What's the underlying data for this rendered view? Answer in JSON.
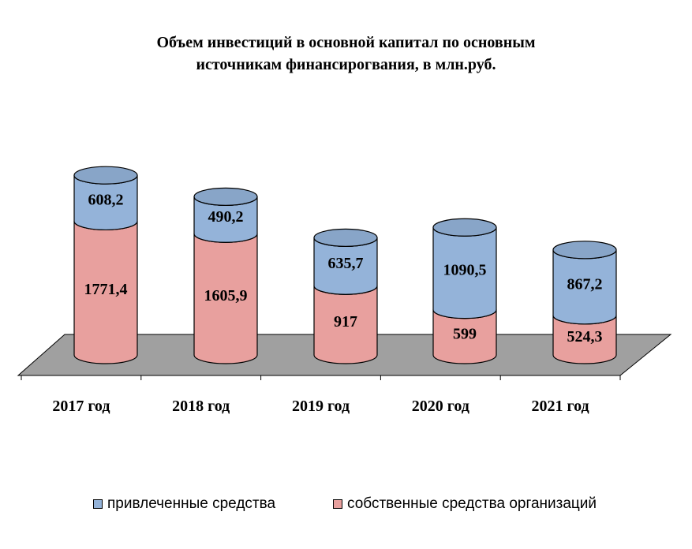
{
  "chart_data": {
    "type": "bar",
    "stacked": true,
    "style": "3d-cylinder",
    "title": [
      "Объем инвестиций в основной капитал по основным",
      "источникам финансирогвания, в млн.руб."
    ],
    "categories": [
      "2017 год",
      "2018 год",
      "2019 год",
      "2020 год",
      "2021 год"
    ],
    "series": [
      {
        "name": "собственные средства организаций",
        "values": [
          1771.4,
          1605.9,
          917,
          599,
          524.3
        ],
        "labels": [
          "1771,4",
          "1605,9",
          "917",
          "599",
          "524,3"
        ],
        "color": "#E8A09E"
      },
      {
        "name": "привлеченные средства",
        "values": [
          608.2,
          490.2,
          635.7,
          1090.5,
          867.2
        ],
        "labels": [
          "608,2",
          "490,2",
          "635,7",
          "1090,5",
          "867,2"
        ],
        "color": "#94B3D9"
      }
    ],
    "legend_position": "bottom",
    "legend_order": [
      "привлеченные средства",
      "собственные средства организаций"
    ],
    "grid": false,
    "floor_color": "#A0A0A0"
  }
}
